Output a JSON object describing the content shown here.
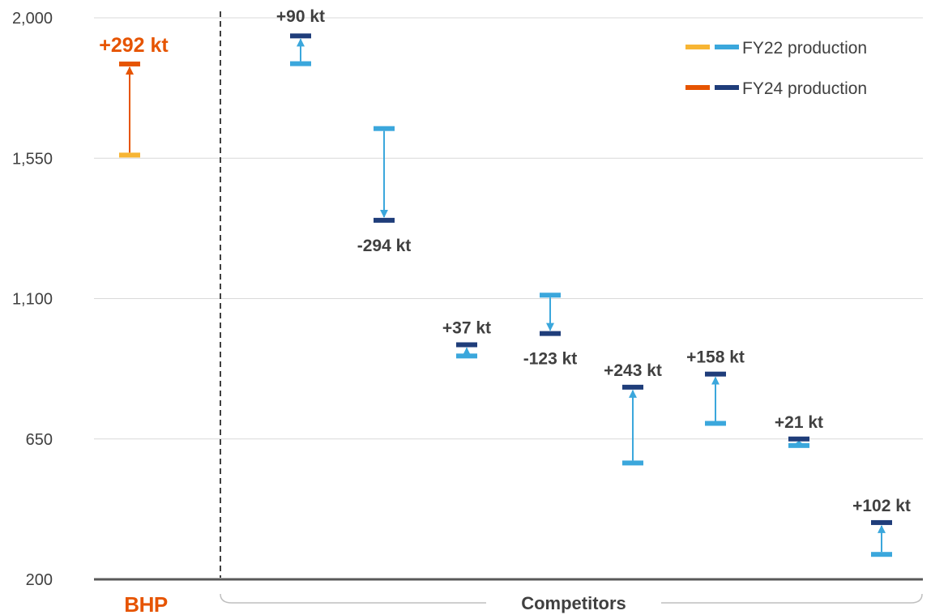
{
  "chart_data": {
    "type": "range",
    "yticks": [
      200,
      650,
      1100,
      1550,
      2000
    ],
    "yticks_text": [
      "200",
      "650",
      "1,100",
      "1,550",
      "2,000"
    ],
    "ylim": [
      200,
      2000
    ],
    "grid": true,
    "legend_position": "top-right",
    "legend": [
      {
        "label": "FY22 production",
        "colors": [
          "#F7B534",
          "#3BA7DC"
        ]
      },
      {
        "label": "FY24 production",
        "colors": [
          "#E65400",
          "#1F3D7A"
        ]
      }
    ],
    "colors": {
      "bhp_fy22": "#F7B534",
      "bhp_fy24": "#E65400",
      "comp_fy22": "#3BA7DC",
      "comp_fy24": "#1F3D7A",
      "grid": "#D9D9D9",
      "axis": "#595959",
      "text": "#404040"
    },
    "groups": [
      {
        "label": "BHP",
        "label_color": "#E65400"
      },
      {
        "label": "Competitors"
      }
    ],
    "series": [
      {
        "group": "BHP",
        "fy22": 1560,
        "fy24": 1852,
        "delta_label": "+292 kt"
      },
      {
        "group": "Competitors",
        "fy22": 1853,
        "fy24": 1942,
        "delta_label": "+90 kt"
      },
      {
        "group": "Competitors",
        "fy22": 1645,
        "fy24": 1351,
        "delta_label": "-294 kt"
      },
      {
        "group": "Competitors",
        "fy22": 916,
        "fy24": 952,
        "delta_label": "+37 kt"
      },
      {
        "group": "Competitors",
        "fy22": 1111,
        "fy24": 988,
        "delta_label": "-123 kt"
      },
      {
        "group": "Competitors",
        "fy22": 573,
        "fy24": 816,
        "delta_label": "+243 kt"
      },
      {
        "group": "Competitors",
        "fy22": 700,
        "fy24": 858,
        "delta_label": "+158 kt"
      },
      {
        "group": "Competitors",
        "fy22": 629,
        "fy24": 650,
        "delta_label": "+21 kt"
      },
      {
        "group": "Competitors",
        "fy22": 280,
        "fy24": 382,
        "delta_label": "+102 kt"
      }
    ]
  }
}
